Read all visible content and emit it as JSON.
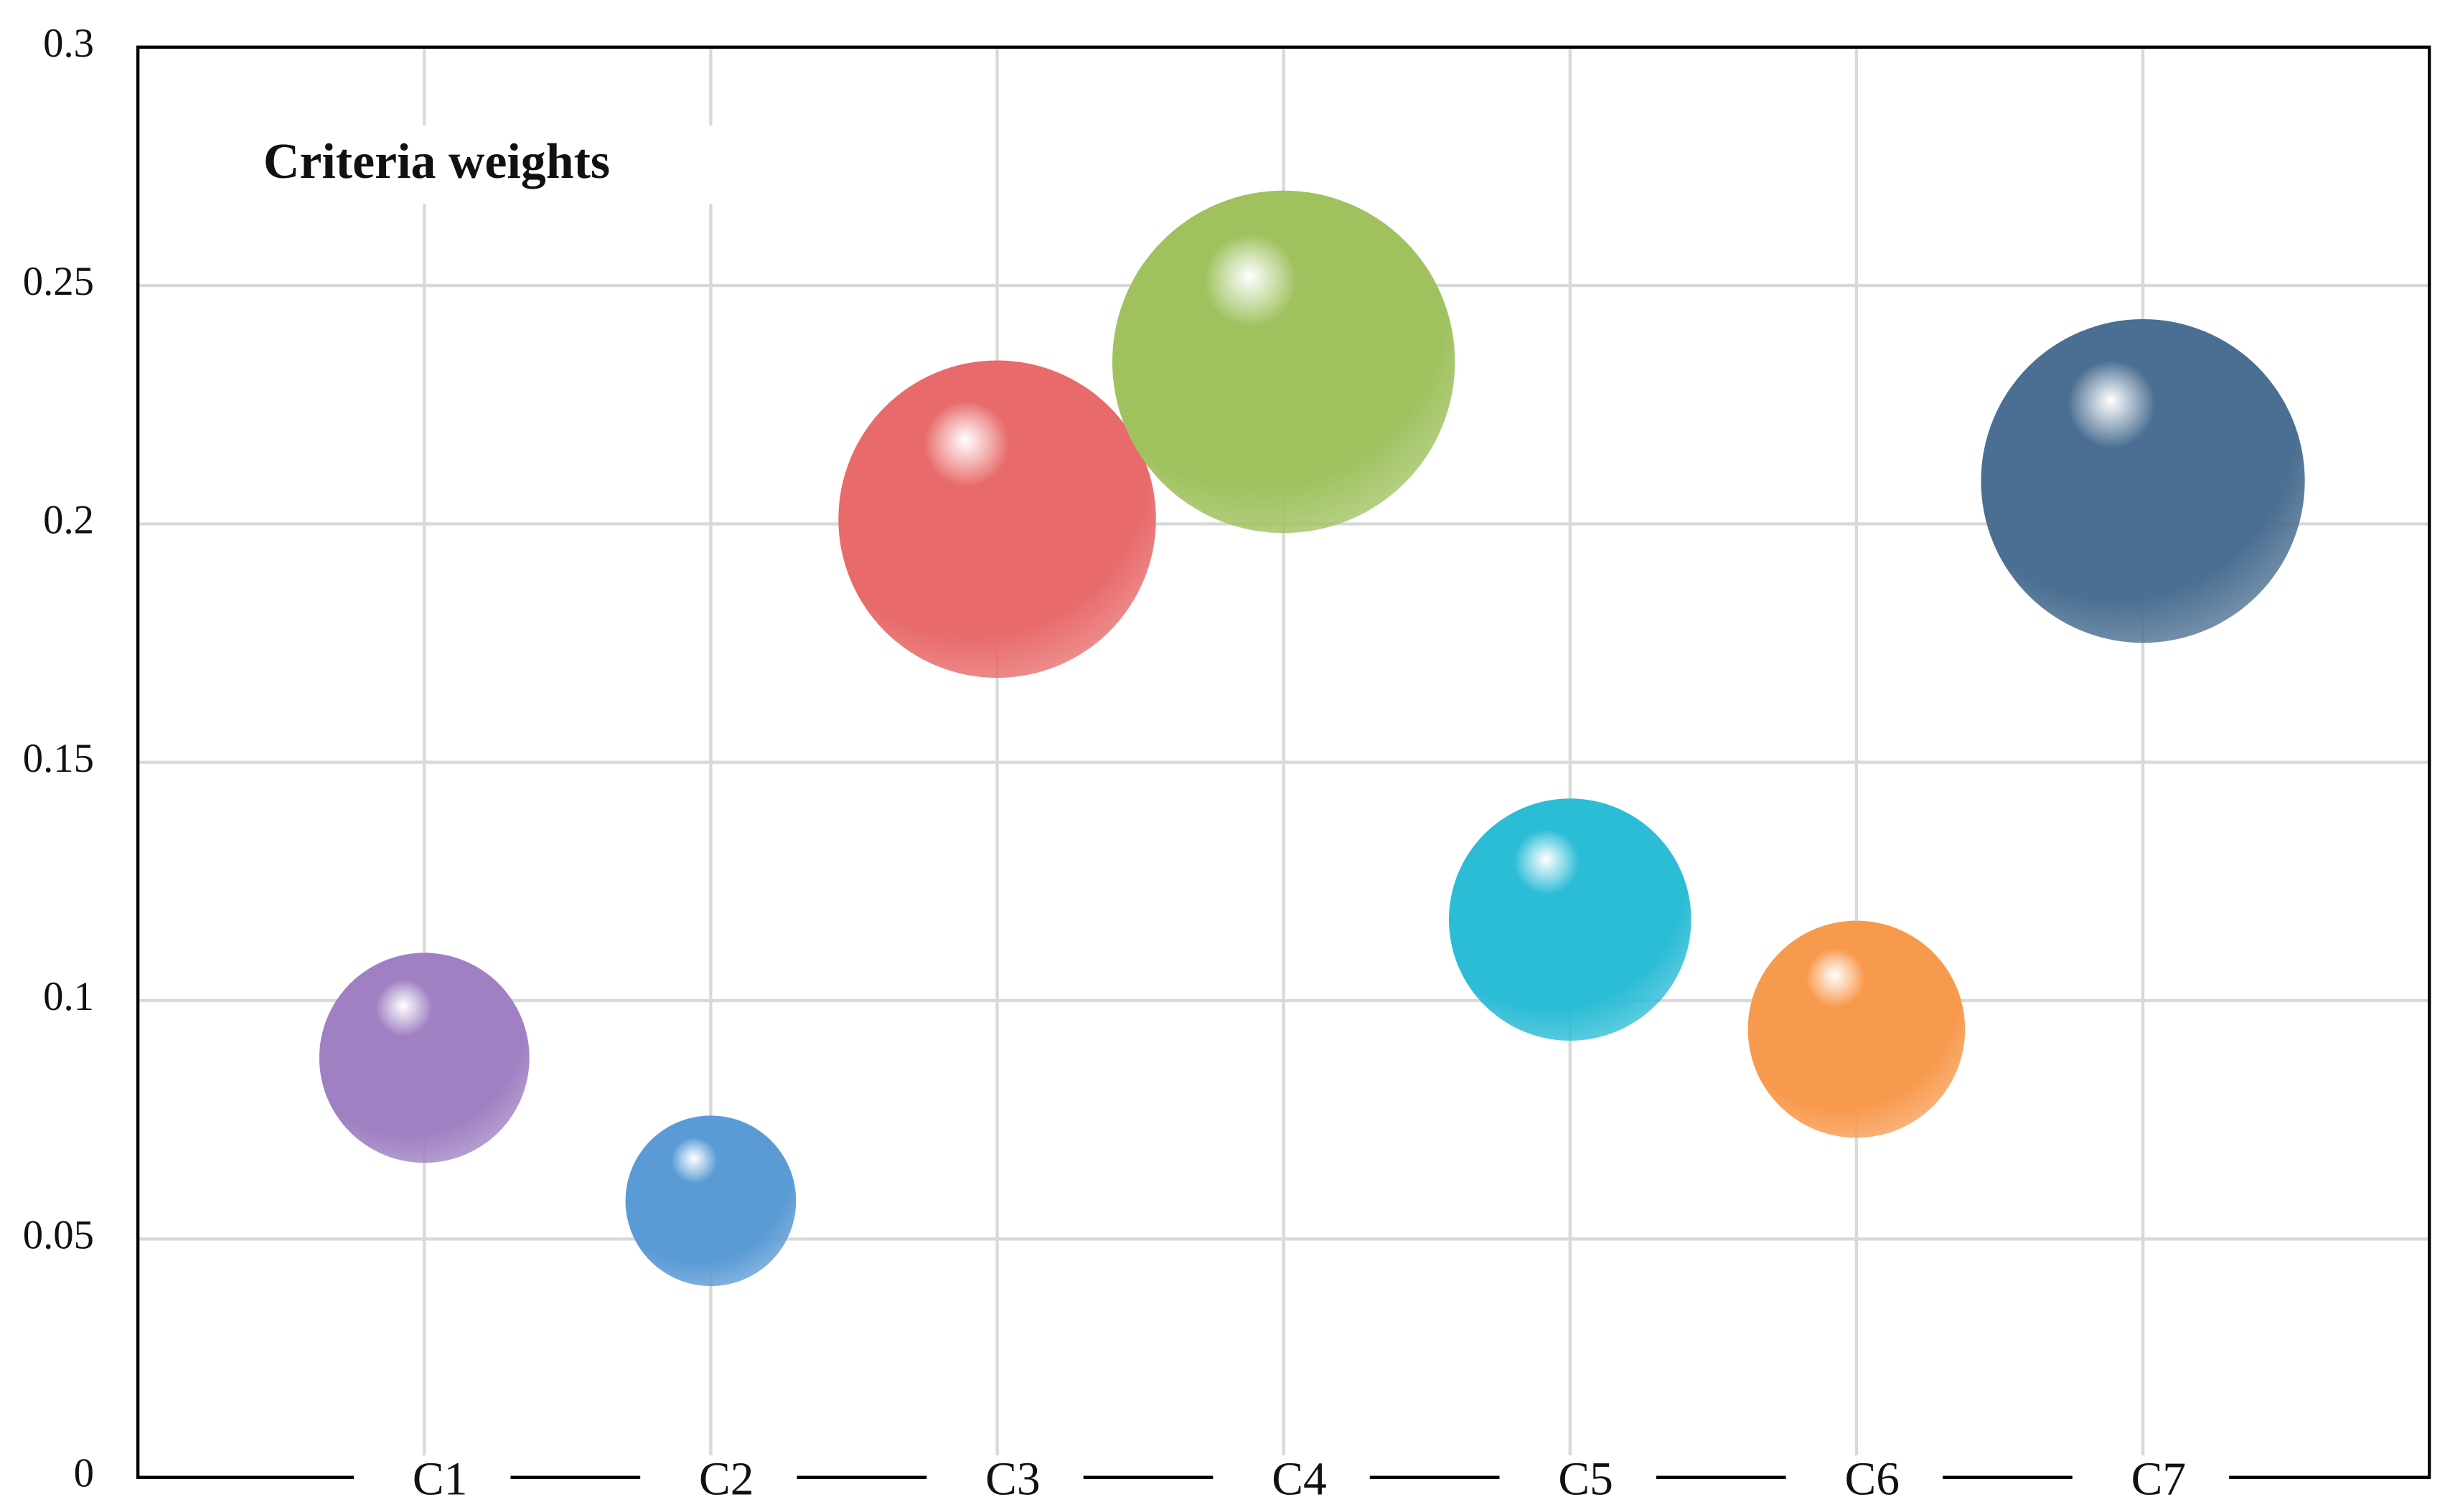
{
  "chart_data": {
    "type": "bubble",
    "title": "Criteria weights",
    "categories": [
      "C1",
      "C2",
      "C3",
      "C4",
      "C5",
      "C6",
      "C7"
    ],
    "series": [
      {
        "values": [
          0.088,
          0.058,
          0.201,
          0.234,
          0.117,
          0.094,
          0.209
        ],
        "sizes": [
          0.088,
          0.058,
          0.201,
          0.234,
          0.117,
          0.094,
          0.209
        ],
        "colors": [
          "#9f80c2",
          "#5b9bd5",
          "#e86a6a",
          "#9fc25f",
          "#2bbcd6",
          "#f89a4e",
          "#4b6f92"
        ]
      }
    ],
    "ylim": [
      0,
      0.3
    ],
    "yticks": [
      0,
      0.05,
      0.1,
      0.15,
      0.2,
      0.25,
      0.3
    ],
    "grid": true
  }
}
